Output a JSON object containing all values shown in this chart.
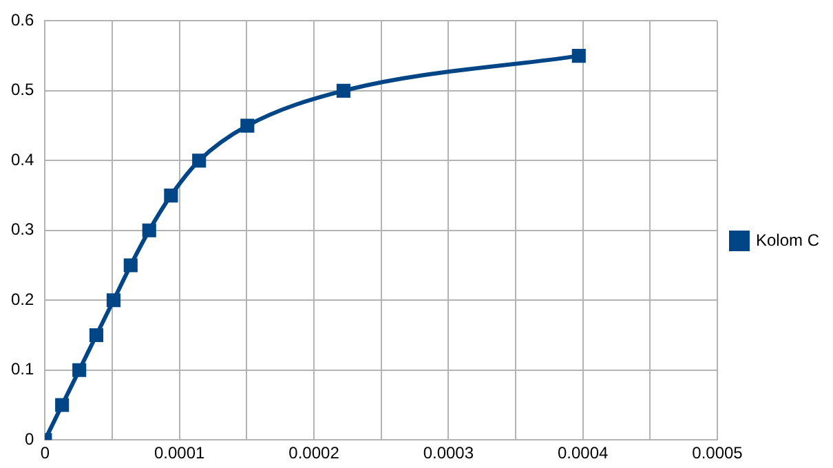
{
  "chart_data": {
    "type": "line",
    "x": [
      0,
      1.27e-05,
      2.55e-05,
      3.82e-05,
      5.1e-05,
      6.37e-05,
      7.75e-05,
      9.37e-05,
      0.0001146,
      0.0001505,
      0.000222,
      0.000397
    ],
    "series": [
      {
        "name": "Kolom C",
        "color": "#004586",
        "values": [
          0,
          0.05,
          0.1,
          0.15,
          0.2,
          0.25,
          0.3,
          0.35,
          0.4,
          0.45,
          0.5,
          0.55
        ]
      }
    ],
    "xlim": [
      0,
      0.0005
    ],
    "xticks": [
      0,
      {
        "value": 5e-05,
        "label": null
      },
      0.0001,
      {
        "value": 0.00015,
        "label": null
      },
      0.0002,
      {
        "value": 0.00025,
        "label": null
      },
      0.0003,
      {
        "value": 0.00035,
        "label": null
      },
      0.0004,
      {
        "value": 0.00045,
        "label": null
      },
      0.0005
    ],
    "ylim": [
      0,
      0.6
    ],
    "yticks": [
      0,
      0.1,
      0.2,
      0.3,
      0.4,
      0.5,
      0.6
    ],
    "grid": true,
    "legend": "right",
    "marker": "square",
    "line_style": "solid"
  }
}
